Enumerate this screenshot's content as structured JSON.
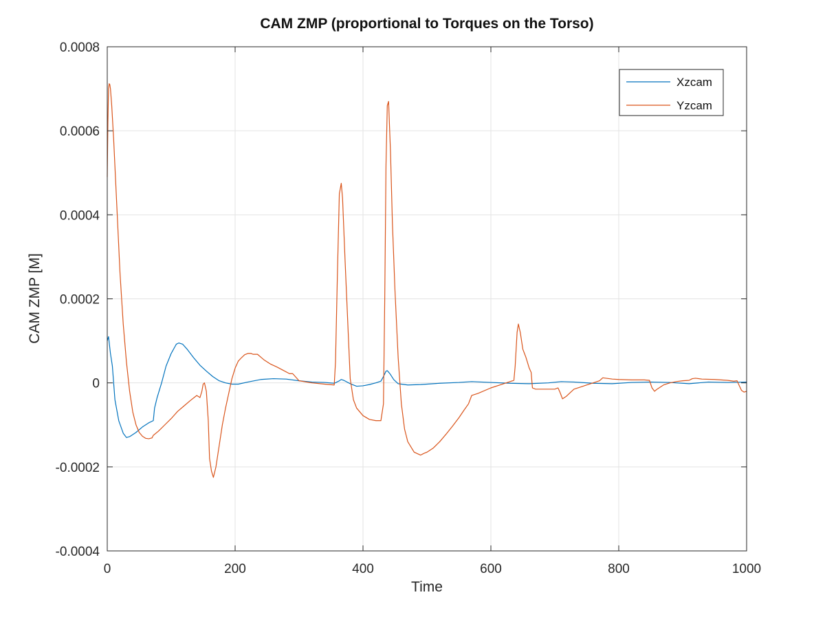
{
  "chart_data": {
    "type": "line",
    "title": "CAM ZMP (proportional to Torques on the Torso)",
    "xlabel": "Time",
    "ylabel": "CAM ZMP [M]",
    "xlim": [
      0,
      1000
    ],
    "ylim": [
      -0.0004,
      0.0008
    ],
    "xticks": [
      0,
      200,
      400,
      600,
      800,
      1000
    ],
    "xtick_labels": [
      "0",
      "200",
      "400",
      "600",
      "800",
      "1000"
    ],
    "yticks": [
      -0.0004,
      -0.0002,
      0,
      0.0002,
      0.0004,
      0.0006,
      0.0008
    ],
    "ytick_labels": [
      "-0.0004",
      "-0.0002",
      "0",
      "0.0002",
      "0.0004",
      "0.0006",
      "0.0008"
    ],
    "grid": true,
    "legend_position": "top-right",
    "series": [
      {
        "name": "Xzcam",
        "color": "#0072BD",
        "x": [
          0,
          2,
          5,
          8,
          12,
          18,
          25,
          30,
          35,
          45,
          55,
          65,
          72,
          74,
          78,
          85,
          92,
          100,
          108,
          112,
          118,
          125,
          135,
          145,
          155,
          165,
          175,
          185,
          195,
          205,
          220,
          240,
          260,
          280,
          300,
          320,
          340,
          355,
          362,
          366,
          370,
          380,
          390,
          400,
          410,
          420,
          428,
          432,
          436,
          438,
          442,
          448,
          455,
          470,
          490,
          520,
          550,
          570,
          600,
          630,
          660,
          690,
          710,
          730,
          760,
          790,
          820,
          850,
          880,
          910,
          940,
          970,
          1000
        ],
        "y": [
          0.0001,
          0.00011,
          7e-05,
          4e-05,
          -4e-05,
          -9e-05,
          -0.00012,
          -0.00013,
          -0.000128,
          -0.000118,
          -0.000105,
          -9.5e-05,
          -9e-05,
          -6e-05,
          -3.5e-05,
          0.0,
          4e-05,
          7e-05,
          9.2e-05,
          9.5e-05,
          9.2e-05,
          8e-05,
          6e-05,
          4.2e-05,
          2.8e-05,
          1.5e-05,
          5e-06,
          0.0,
          -3e-06,
          -3e-06,
          2e-06,
          8e-06,
          1e-05,
          9e-06,
          5e-06,
          2e-06,
          1e-06,
          -1e-06,
          4e-06,
          8e-06,
          6e-06,
          -2e-06,
          -8e-06,
          -7e-06,
          -4e-06,
          0.0,
          4e-06,
          1.5e-05,
          2.8e-05,
          2.9e-05,
          2.2e-05,
          8e-06,
          -2e-06,
          -5e-06,
          -4e-06,
          -1e-06,
          1e-06,
          3e-06,
          1e-06,
          -1e-06,
          -2e-06,
          0.0,
          3e-06,
          2e-06,
          -1e-06,
          -2e-06,
          1e-06,
          2e-06,
          1e-06,
          -2e-06,
          2e-06,
          1e-06,
          2e-06
        ]
      },
      {
        "name": "Yzcam",
        "color": "#D95319",
        "x": [
          0,
          1,
          2,
          3,
          4,
          5,
          7,
          10,
          15,
          20,
          25,
          30,
          35,
          40,
          45,
          50,
          55,
          60,
          65,
          70,
          72,
          80,
          90,
          100,
          110,
          120,
          130,
          140,
          145,
          148,
          150,
          152,
          155,
          158,
          160,
          163,
          166,
          170,
          175,
          180,
          185,
          190,
          195,
          200,
          205,
          210,
          215,
          220,
          225,
          228,
          235,
          245,
          255,
          265,
          275,
          285,
          290,
          300,
          320,
          340,
          355,
          357,
          360,
          363,
          366,
          368,
          372,
          376,
          380,
          385,
          390,
          400,
          410,
          420,
          428,
          432,
          434,
          436,
          438,
          440,
          443,
          446,
          450,
          455,
          460,
          465,
          470,
          480,
          490,
          495,
          500,
          510,
          520,
          530,
          540,
          550,
          558,
          565,
          570,
          580,
          600,
          620,
          630,
          636,
          638,
          641,
          643,
          646,
          650,
          655,
          660,
          663,
          665,
          670,
          680,
          690,
          700,
          705,
          708,
          712,
          718,
          725,
          730,
          740,
          750,
          760,
          770,
          775,
          780,
          790,
          800,
          820,
          840,
          848,
          852,
          856,
          860,
          870,
          880,
          890,
          900,
          910,
          915,
          920,
          930,
          950,
          970,
          980,
          985,
          988,
          992,
          996,
          1000
        ],
        "y": [
          0.00049,
          0.00062,
          0.0007,
          0.000712,
          0.00071,
          0.0007,
          0.00066,
          0.00058,
          0.00042,
          0.00026,
          0.00014,
          5e-05,
          -2e-05,
          -7e-05,
          -0.0001,
          -0.000118,
          -0.000127,
          -0.000132,
          -0.000133,
          -0.000131,
          -0.000125,
          -0.000115,
          -0.0001,
          -8.5e-05,
          -6.8e-05,
          -5.5e-05,
          -4.2e-05,
          -3e-05,
          -3.5e-05,
          -2e-05,
          -3e-06,
          0.0,
          -2e-05,
          -9e-05,
          -0.00018,
          -0.00021,
          -0.000225,
          -0.0002,
          -0.00015,
          -0.0001,
          -6e-05,
          -2.5e-05,
          1e-05,
          3.5e-05,
          5.2e-05,
          6e-05,
          6.7e-05,
          7e-05,
          7e-05,
          6.8e-05,
          6.8e-05,
          5.5e-05,
          4.5e-05,
          3.8e-05,
          3e-05,
          2.2e-05,
          2.2e-05,
          5e-06,
          0.0,
          -3e-06,
          -5e-06,
          5e-05,
          0.00026,
          0.00045,
          0.000475,
          0.00044,
          0.00029,
          0.00015,
          1e-05,
          -4e-05,
          -6e-05,
          -7.8e-05,
          -8.7e-05,
          -9e-05,
          -9e-05,
          -5e-05,
          0.0002,
          0.00052,
          0.00066,
          0.00067,
          0.00055,
          0.00038,
          0.00022,
          6e-05,
          -5e-05,
          -0.00011,
          -0.00014,
          -0.000165,
          -0.000172,
          -0.000168,
          -0.000165,
          -0.000155,
          -0.00014,
          -0.000122,
          -0.000103,
          -8.3e-05,
          -6.5e-05,
          -5e-05,
          -3e-05,
          -2.5e-05,
          -1.2e-05,
          -2e-06,
          3e-06,
          6e-06,
          4e-05,
          0.00012,
          0.00014,
          0.00012,
          8e-05,
          6e-05,
          3.5e-05,
          2.5e-05,
          -1.2e-05,
          -1.5e-05,
          -1.5e-05,
          -1.5e-05,
          -1.5e-05,
          -1.2e-05,
          -2.2e-05,
          -3.8e-05,
          -3.2e-05,
          -2.2e-05,
          -1.5e-05,
          -1e-05,
          -5e-06,
          0.0,
          5e-06,
          1.2e-05,
          1.1e-05,
          9e-06,
          8e-06,
          7e-06,
          7e-06,
          6e-06,
          -1.2e-05,
          -2e-05,
          -1.5e-05,
          -5e-06,
          0.0,
          3e-06,
          5e-06,
          6e-06,
          1e-05,
          1.1e-05,
          9e-06,
          8e-06,
          6e-06,
          4e-06,
          5e-06,
          -5e-06,
          -1.8e-05,
          -2.2e-05,
          -2e-05
        ]
      }
    ]
  }
}
